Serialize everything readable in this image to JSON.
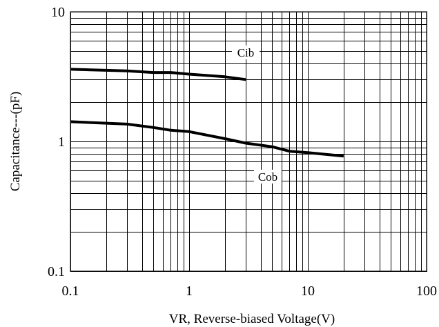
{
  "chart_data": {
    "type": "line",
    "x_scale": "log",
    "y_scale": "log",
    "xlim": [
      0.1,
      100
    ],
    "ylim": [
      0.1,
      10
    ],
    "grid": true,
    "xlabel": "VR, Reverse-biased Voltage(V)",
    "ylabel": "Capacitance---(pF)",
    "x_ticks": [
      "0.1",
      "1",
      "10",
      "100"
    ],
    "y_ticks": [
      "0.1",
      "1",
      "10"
    ],
    "series": [
      {
        "name": "Cib",
        "x": [
          0.1,
          0.3,
          0.5,
          0.7,
          1,
          2,
          3
        ],
        "y": [
          3.6,
          3.5,
          3.4,
          3.4,
          3.3,
          3.15,
          3.0
        ]
      },
      {
        "name": "Cob",
        "x": [
          0.1,
          0.3,
          0.5,
          0.7,
          1,
          2,
          3,
          5,
          7,
          10,
          20
        ],
        "y": [
          1.42,
          1.36,
          1.28,
          1.22,
          1.19,
          1.05,
          0.97,
          0.91,
          0.84,
          0.82,
          0.77
        ]
      }
    ]
  }
}
